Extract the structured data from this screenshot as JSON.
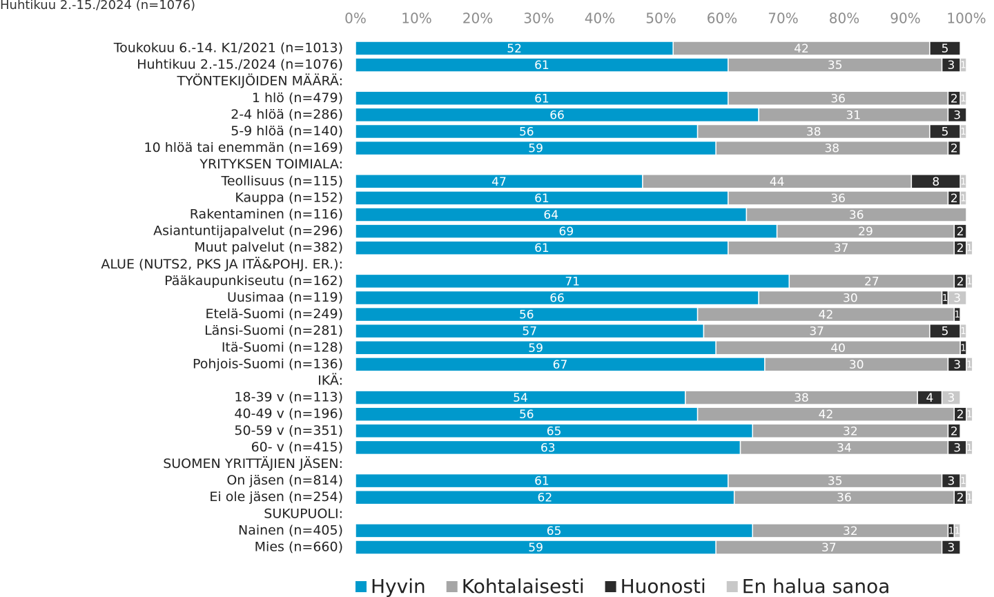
{
  "chart_data": {
    "type": "stacked-barh",
    "subtitle": "Huhtikuu 2.-15./2024 (n=1076)",
    "categories": [
      "Toukokuu 6.-14. K1/2021 (n=1013)",
      "Huhtikuu 2.-15./2024 (n=1076)",
      "TYÖNTEKIJÖIDEN MÄÄRÄ:",
      "1 hlö (n=479)",
      "2-4 hlöä (n=286)",
      "5-9 hlöä (n=140)",
      "10 hlöä tai enemmän (n=169)",
      "YRITYKSEN TOIMIALA:",
      "Teollisuus (n=115)",
      "Kauppa (n=152)",
      "Rakentaminen (n=116)",
      "Asiantuntijapalvelut (n=296)",
      "Muut palvelut (n=382)",
      "ALUE (NUTS2, PKS JA ITÄ&POHJ. ER.):",
      "Pääkaupunkiseutu (n=162)",
      "Uusimaa (n=119)",
      "Etelä-Suomi (n=249)",
      "Länsi-Suomi (n=281)",
      "Itä-Suomi (n=128)",
      "Pohjois-Suomi (n=136)",
      "IKÄ:",
      "18-39 v (n=113)",
      "40-49 v (n=196)",
      "50-59 v (n=351)",
      "60- v (n=415)",
      "SUOMEN YRITTÄJIEN JÄSEN:",
      "On jäsen (n=814)",
      "Ei ole jäsen (n=254)",
      "SUKUPUOLI:",
      "Nainen (n=405)",
      "Mies (n=660)"
    ],
    "series": [
      {
        "name": "Hyvin",
        "color": "#0099cc",
        "values": [
          52,
          61,
          null,
          61,
          66,
          56,
          59,
          null,
          47,
          61,
          64,
          69,
          61,
          null,
          71,
          66,
          56,
          57,
          59,
          67,
          null,
          54,
          56,
          65,
          63,
          null,
          61,
          62,
          null,
          65,
          59
        ]
      },
      {
        "name": "Kohtalaisesti",
        "color": "#a6a6a6",
        "values": [
          42,
          35,
          null,
          36,
          31,
          38,
          38,
          null,
          44,
          36,
          36,
          29,
          37,
          null,
          27,
          30,
          42,
          37,
          40,
          30,
          null,
          38,
          42,
          32,
          34,
          null,
          35,
          36,
          null,
          32,
          37
        ]
      },
      {
        "name": "Huonosti",
        "color": "#2b2b2b",
        "values": [
          5,
          3,
          null,
          2,
          3,
          5,
          2,
          null,
          8,
          2,
          null,
          2,
          2,
          null,
          2,
          1,
          1,
          5,
          1,
          3,
          null,
          4,
          2,
          2,
          3,
          null,
          3,
          2,
          null,
          1,
          3
        ]
      },
      {
        "name": "En halua sanoa",
        "color": "#c8c8c8",
        "values": [
          null,
          1,
          null,
          1,
          null,
          1,
          null,
          null,
          1,
          1,
          null,
          null,
          1,
          null,
          1,
          3,
          null,
          1,
          null,
          1,
          null,
          3,
          1,
          null,
          1,
          null,
          1,
          1,
          null,
          1,
          null
        ]
      }
    ],
    "xlim": [
      0,
      100
    ],
    "xticks": [
      {
        "value": 0,
        "label": "0%"
      },
      {
        "value": 10,
        "label": "10%"
      },
      {
        "value": 20,
        "label": "20%"
      },
      {
        "value": 30,
        "label": "30%"
      },
      {
        "value": 40,
        "label": "40%"
      },
      {
        "value": 50,
        "label": "50%"
      },
      {
        "value": 60,
        "label": "60%"
      },
      {
        "value": 70,
        "label": "70%"
      },
      {
        "value": 80,
        "label": "80%"
      },
      {
        "value": 90,
        "label": "90%"
      },
      {
        "value": 100,
        "label": "100%"
      }
    ],
    "legend": "bottom"
  }
}
